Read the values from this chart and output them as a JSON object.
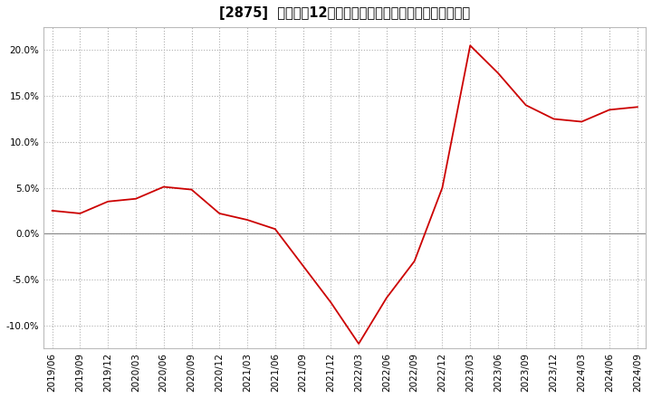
{
  "title": "[2875]  売上高の12か月移動合計の対前年同期増減率の推移",
  "line_color": "#cc0000",
  "background_color": "#ffffff",
  "grid_color": "#b0b0b0",
  "x_labels": [
    "2019/06",
    "2019/09",
    "2019/12",
    "2020/03",
    "2020/06",
    "2020/09",
    "2020/12",
    "2021/03",
    "2021/06",
    "2021/09",
    "2021/12",
    "2022/03",
    "2022/06",
    "2022/09",
    "2022/12",
    "2023/03",
    "2023/06",
    "2023/09",
    "2023/12",
    "2024/03",
    "2024/06",
    "2024/09"
  ],
  "y_values": [
    2.5,
    2.2,
    3.5,
    3.8,
    5.1,
    4.8,
    2.2,
    1.5,
    0.5,
    -3.5,
    -7.5,
    -12.0,
    -7.0,
    -3.0,
    5.0,
    20.5,
    17.5,
    14.0,
    12.5,
    12.2,
    13.5,
    13.8
  ],
  "ylim": [
    -12.5,
    22.5
  ],
  "yticks": [
    -10.0,
    -5.0,
    0.0,
    5.0,
    10.0,
    15.0,
    20.0
  ],
  "title_fontsize": 10.5,
  "tick_fontsize": 7.5
}
